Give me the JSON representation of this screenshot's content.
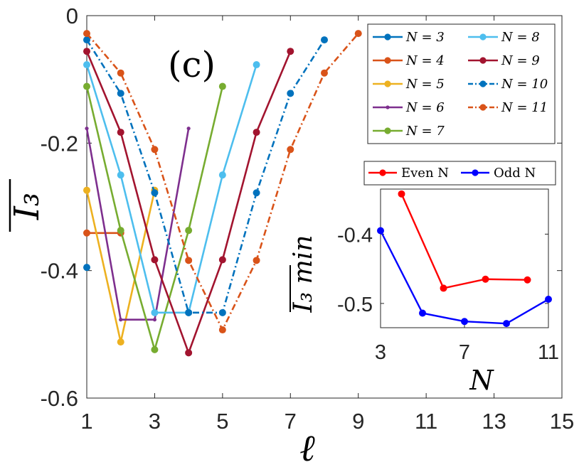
{
  "chart_data": [
    {
      "type": "line",
      "panel_label": "(c)",
      "xlabel": "ℓ",
      "ylabel": "I₃",
      "xlim": [
        1,
        15
      ],
      "ylim": [
        -0.6,
        0
      ],
      "xticks": [
        "1",
        "3",
        "5",
        "7",
        "9",
        "11",
        "13",
        "15"
      ],
      "yticks": [
        "0",
        "-0.2",
        "-0.4",
        "-0.6"
      ],
      "legend_position": "top-right",
      "series": [
        {
          "name": "N = 3",
          "color": "#0072BD",
          "dash": "solid",
          "marker": "dot",
          "x": [
            1
          ],
          "y": [
            -0.395
          ]
        },
        {
          "name": "N = 4",
          "color": "#D95319",
          "dash": "solid",
          "marker": "dot",
          "x": [
            1,
            2
          ],
          "y": [
            -0.341,
            -0.341
          ]
        },
        {
          "name": "N = 5",
          "color": "#EDB120",
          "dash": "solid",
          "marker": "dot",
          "x": [
            1,
            2,
            3
          ],
          "y": [
            -0.274,
            -0.512,
            -0.274
          ]
        },
        {
          "name": "N = 6",
          "color": "#7E2F8E",
          "dash": "solid",
          "marker": "small",
          "x": [
            1,
            2,
            3,
            4
          ],
          "y": [
            -0.177,
            -0.477,
            -0.477,
            -0.177
          ]
        },
        {
          "name": "N = 7",
          "color": "#77AC30",
          "dash": "solid",
          "marker": "dot",
          "x": [
            1,
            2,
            3,
            4,
            5
          ],
          "y": [
            -0.111,
            -0.337,
            -0.524,
            -0.337,
            -0.111
          ]
        },
        {
          "name": "N = 8",
          "color": "#4DBEEE",
          "dash": "solid",
          "marker": "dot",
          "x": [
            1,
            2,
            3,
            4,
            5,
            6
          ],
          "y": [
            -0.077,
            -0.25,
            -0.466,
            -0.466,
            -0.25,
            -0.077
          ]
        },
        {
          "name": "N = 9",
          "color": "#A2142F",
          "dash": "solid",
          "marker": "dot",
          "x": [
            1,
            2,
            3,
            4,
            5,
            6,
            7
          ],
          "y": [
            -0.056,
            -0.183,
            -0.383,
            -0.529,
            -0.383,
            -0.183,
            -0.056
          ]
        },
        {
          "name": "N = 10",
          "color": "#0072BD",
          "dash": "dashdot",
          "marker": "dot",
          "x": [
            1,
            2,
            3,
            4,
            5,
            6,
            7,
            8
          ],
          "y": [
            -0.038,
            -0.122,
            -0.278,
            -0.466,
            -0.466,
            -0.278,
            -0.122,
            -0.038
          ]
        },
        {
          "name": "N = 11",
          "color": "#D95319",
          "dash": "dashdot",
          "marker": "dot",
          "x": [
            1,
            2,
            3,
            4,
            5,
            6,
            7,
            8,
            9
          ],
          "y": [
            -0.028,
            -0.09,
            -0.21,
            -0.384,
            -0.493,
            -0.384,
            -0.21,
            -0.09,
            -0.028
          ]
        }
      ]
    },
    {
      "type": "line",
      "inset": true,
      "xlabel": "N",
      "ylabel": "I₃ min",
      "xlim": [
        3,
        11
      ],
      "ylim": [
        -0.535,
        -0.335
      ],
      "xticks": [
        "3",
        "7",
        "11"
      ],
      "yticks": [
        "-0.4",
        "-0.5"
      ],
      "legend_position": "top",
      "series": [
        {
          "name": "Even N",
          "color": "#FF0000",
          "x": [
            4,
            6,
            8,
            10
          ],
          "y": [
            -0.342,
            -0.478,
            -0.465,
            -0.466
          ]
        },
        {
          "name": "Odd N",
          "color": "#0000FF",
          "x": [
            3,
            5,
            7,
            9,
            11
          ],
          "y": [
            -0.395,
            -0.514,
            -0.526,
            -0.529,
            -0.494
          ]
        }
      ]
    }
  ]
}
